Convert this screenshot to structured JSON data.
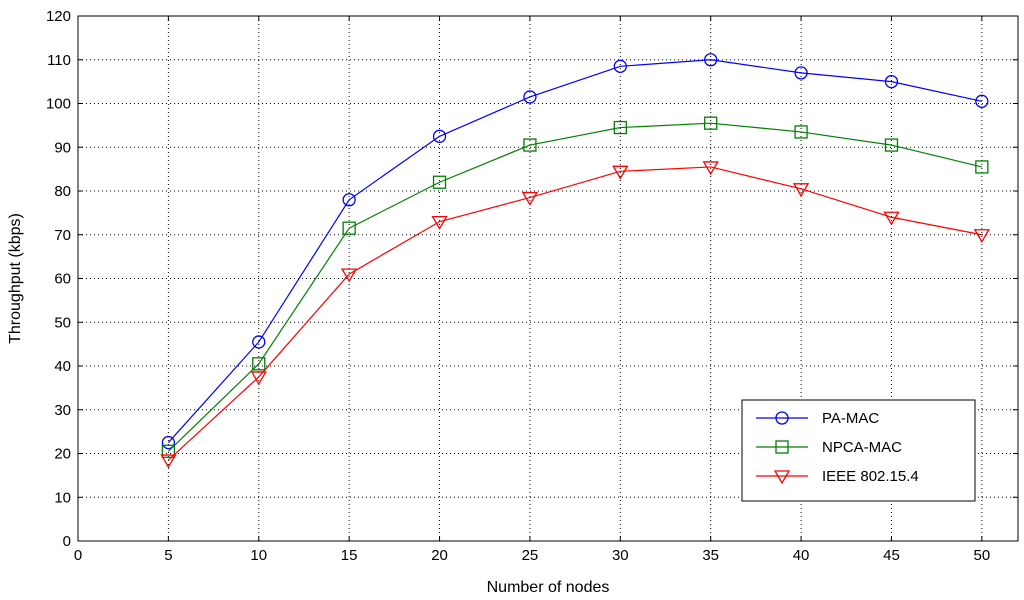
{
  "chart_data": {
    "type": "line",
    "title": "",
    "xlabel": "Number of nodes",
    "ylabel": "Throughput (kbps)",
    "xlim": [
      0,
      52
    ],
    "ylim": [
      0,
      120
    ],
    "xticks": [
      0,
      5,
      10,
      15,
      20,
      25,
      30,
      35,
      40,
      45,
      50
    ],
    "yticks": [
      0,
      10,
      20,
      30,
      40,
      50,
      60,
      70,
      80,
      90,
      100,
      110,
      120
    ],
    "grid": true,
    "legend_position": "bottom-right",
    "x": [
      5,
      10,
      15,
      20,
      25,
      30,
      35,
      40,
      45,
      50
    ],
    "series": [
      {
        "name": "PA-MAC",
        "color": "#0000ff",
        "marker": "circle",
        "values": [
          22.5,
          45.5,
          78,
          92.5,
          101.5,
          108.5,
          110,
          107,
          105,
          100.5
        ]
      },
      {
        "name": "NPCA-MAC",
        "color": "#008000",
        "marker": "square",
        "values": [
          20.5,
          40.5,
          71.5,
          82,
          90.5,
          94.5,
          95.5,
          93.5,
          90.5,
          85.5
        ]
      },
      {
        "name": "IEEE 802.15.4",
        "color": "#ff0000",
        "marker": "triangle-down",
        "values": [
          18.5,
          37.5,
          61,
          73,
          78.5,
          84.5,
          85.5,
          80.5,
          74,
          70
        ]
      }
    ]
  }
}
